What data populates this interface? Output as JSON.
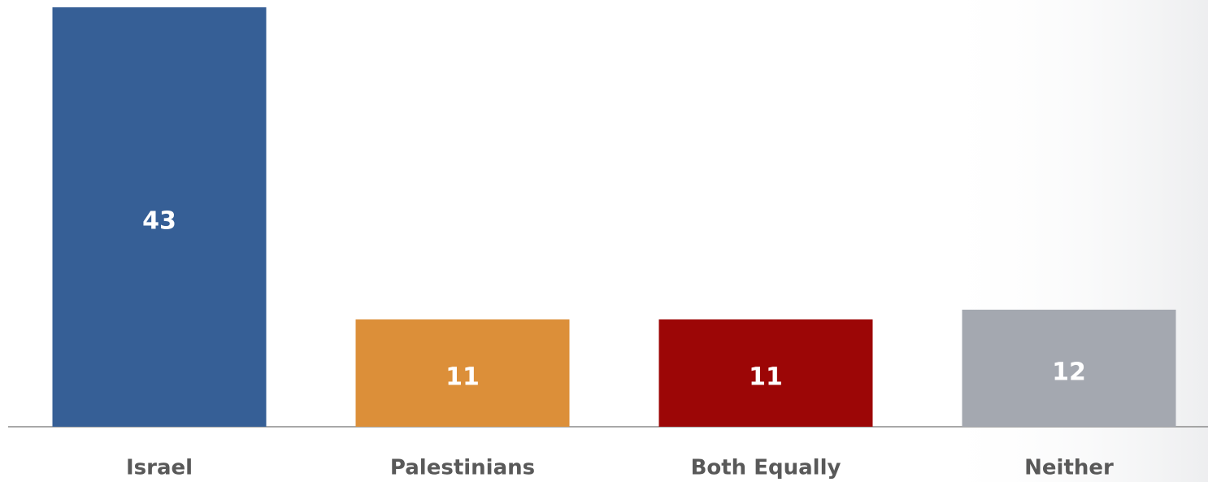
{
  "chart_data": {
    "type": "bar",
    "categories": [
      "Israel",
      "Palestinians",
      "Both Equally",
      "Neither"
    ],
    "values": [
      43,
      11,
      11,
      12
    ],
    "colors": [
      "#365f96",
      "#dc8f39",
      "#9c0606",
      "#a4a8b0"
    ],
    "ylim": [
      0,
      43
    ]
  }
}
